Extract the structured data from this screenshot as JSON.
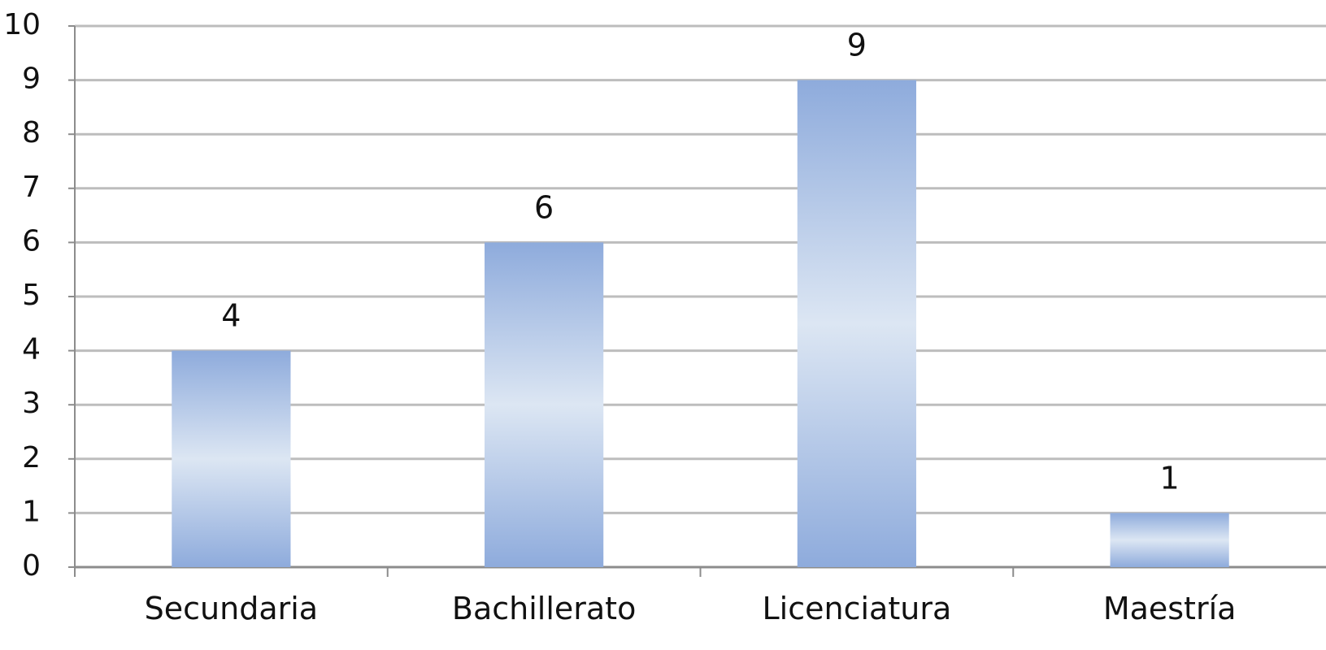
{
  "chart_data": {
    "type": "bar",
    "categories": [
      "Secundaria",
      "Bachillerato",
      "Licenciatura",
      "Maestría"
    ],
    "values": [
      4,
      6,
      9,
      1
    ],
    "title": "",
    "xlabel": "",
    "ylabel": "",
    "ylim": [
      0,
      10
    ],
    "y_ticks": [
      "0",
      "1",
      "2",
      "3",
      "4",
      "5",
      "6",
      "7",
      "8",
      "9",
      "10"
    ],
    "data_labels": [
      "4",
      "6",
      "9",
      "1"
    ],
    "grid": true,
    "legend": "none",
    "colors": {
      "bar_edge": "#8eabdc",
      "bar_mid": "#dce6f3",
      "grid": "#bdbdbd",
      "axis": "#8c8c8c",
      "text": "#111111"
    }
  }
}
